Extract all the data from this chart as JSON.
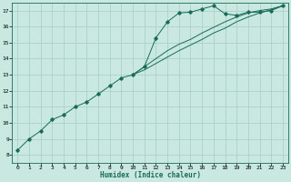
{
  "xlabel": "Humidex (Indice chaleur)",
  "ylabel": "",
  "background_color": "#c8e8e0",
  "line_color": "#1a6b5a",
  "grid_color": "#a8ccc8",
  "xlim": [
    -0.5,
    23.5
  ],
  "ylim": [
    7.5,
    17.5
  ],
  "xticks": [
    0,
    1,
    2,
    3,
    4,
    5,
    6,
    7,
    8,
    9,
    10,
    11,
    12,
    13,
    14,
    15,
    16,
    17,
    18,
    19,
    20,
    21,
    22,
    23
  ],
  "yticks": [
    8,
    9,
    10,
    11,
    12,
    13,
    14,
    15,
    16,
    17
  ],
  "line1": [
    [
      0,
      8.3
    ],
    [
      1,
      9.0
    ],
    [
      2,
      9.5
    ],
    [
      3,
      10.2
    ],
    [
      4,
      10.5
    ],
    [
      5,
      11.0
    ],
    [
      6,
      11.3
    ],
    [
      7,
      11.8
    ],
    [
      8,
      12.3
    ],
    [
      9,
      12.8
    ],
    [
      10,
      13.0
    ],
    [
      11,
      13.5
    ],
    [
      12,
      15.3
    ],
    [
      13,
      16.3
    ],
    [
      14,
      16.85
    ],
    [
      15,
      16.9
    ],
    [
      16,
      17.1
    ],
    [
      17,
      17.3
    ],
    [
      18,
      16.8
    ],
    [
      19,
      16.7
    ],
    [
      20,
      16.9
    ],
    [
      21,
      16.9
    ],
    [
      22,
      17.0
    ],
    [
      23,
      17.3
    ]
  ],
  "line2": [
    [
      10,
      13.0
    ],
    [
      11,
      13.5
    ],
    [
      12,
      14.0
    ],
    [
      13,
      14.5
    ],
    [
      14,
      14.9
    ],
    [
      15,
      15.2
    ],
    [
      16,
      15.6
    ],
    [
      17,
      15.95
    ],
    [
      18,
      16.3
    ],
    [
      19,
      16.6
    ],
    [
      20,
      16.85
    ],
    [
      21,
      17.0
    ],
    [
      22,
      17.1
    ],
    [
      23,
      17.3
    ]
  ],
  "line3": [
    [
      10,
      13.0
    ],
    [
      11,
      13.3
    ],
    [
      12,
      13.7
    ],
    [
      13,
      14.1
    ],
    [
      14,
      14.5
    ],
    [
      15,
      14.85
    ],
    [
      16,
      15.2
    ],
    [
      17,
      15.6
    ],
    [
      18,
      15.9
    ],
    [
      19,
      16.3
    ],
    [
      20,
      16.6
    ],
    [
      21,
      16.85
    ],
    [
      22,
      17.05
    ],
    [
      23,
      17.3
    ]
  ]
}
